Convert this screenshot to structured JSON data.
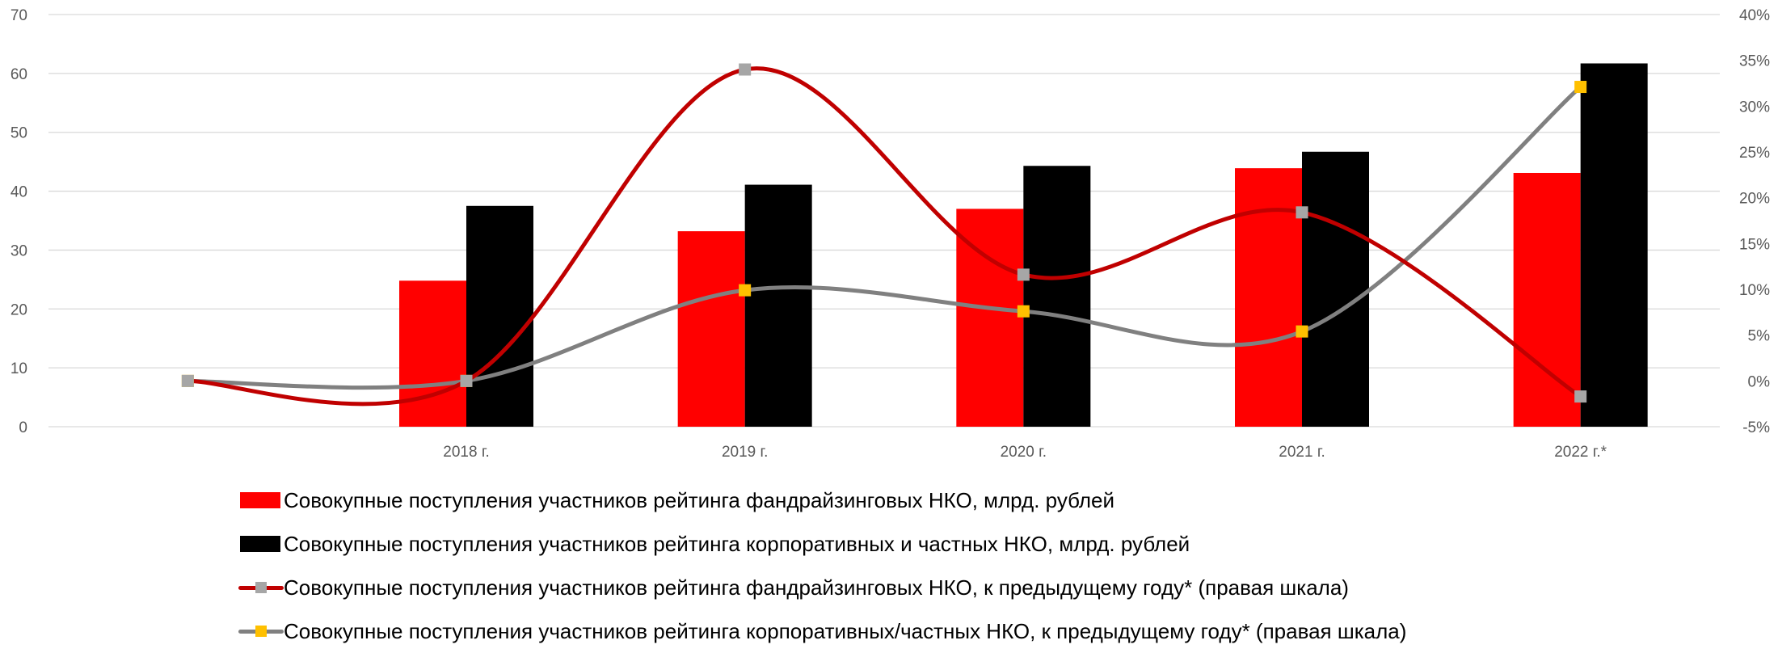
{
  "chart_data": {
    "type": "bar",
    "categories": [
      "",
      "2018 г.",
      "2019 г.",
      "2020 г.",
      "2021 г.",
      "2022 г.*"
    ],
    "y_left": {
      "min": 0,
      "max": 70,
      "step": 10,
      "ticks": [
        "0",
        "10",
        "20",
        "30",
        "40",
        "50",
        "60",
        "70"
      ]
    },
    "y_right": {
      "min": -5,
      "max": 40,
      "step": 5,
      "ticks": [
        "-5%",
        "0%",
        "5%",
        "10%",
        "15%",
        "20%",
        "25%",
        "30%",
        "35%",
        "40%"
      ]
    },
    "series": [
      {
        "name": "Совокупные поступления участников рейтинга фандрайзинговых НКО, млрд. рублей",
        "kind": "bar",
        "axis": "left",
        "color": "#ff0000",
        "values": [
          null,
          24.8,
          33.2,
          37.0,
          43.9,
          43.1
        ]
      },
      {
        "name": "Совокупные поступления участников рейтинга корпоративных и частных НКО, млрд. рублей",
        "kind": "bar",
        "axis": "left",
        "color": "#000000",
        "values": [
          null,
          37.5,
          41.1,
          44.3,
          46.7,
          61.7
        ]
      },
      {
        "name": "Совокупные поступления участников рейтинга фандрайзинговых НКО, к предыдущему году* (правая шкала)",
        "kind": "line",
        "axis": "right",
        "color": "#c00000",
        "marker_color": "#a6a6a6",
        "values": [
          0,
          0,
          34.0,
          11.6,
          18.4,
          -1.7
        ]
      },
      {
        "name": "Совокупные поступления участников рейтинга корпоративных/частных НКО, к предыдущему году* (правая шкала)",
        "kind": "line",
        "axis": "right",
        "color": "#808080",
        "marker_color": "#ffc000",
        "values": [
          0,
          0,
          9.9,
          7.6,
          5.4,
          32.1
        ]
      }
    ],
    "grid": true,
    "legend_position": "bottom"
  }
}
